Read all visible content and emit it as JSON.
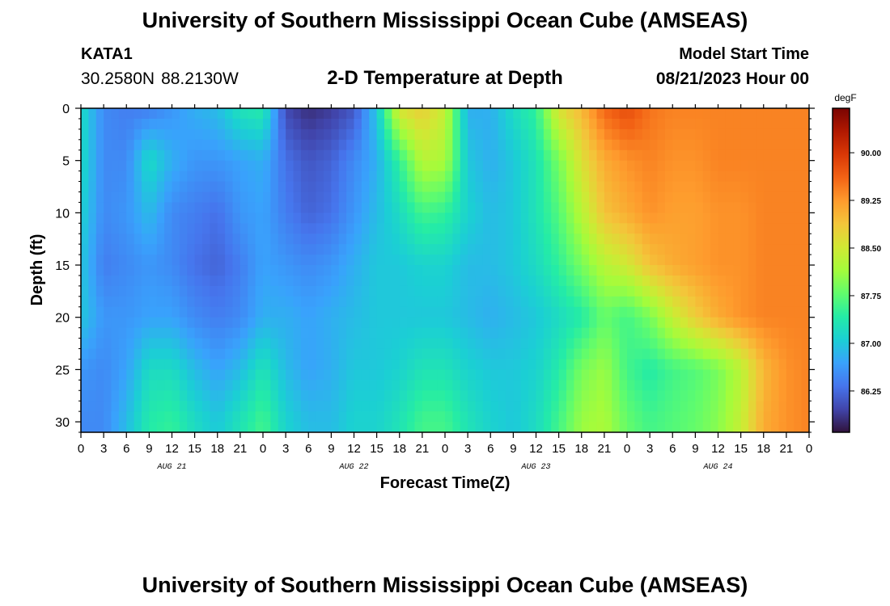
{
  "header": {
    "title": "University of Southern Mississippi Ocean Cube (AMSEAS)",
    "station": "KATA1",
    "latitude": "30.2580N",
    "longitude": "88.2130W",
    "subtitle": "2-D Temperature at Depth",
    "model_start_label": "Model Start Time",
    "model_start_value": "08/21/2023 Hour 00"
  },
  "footer": {
    "title": "University of Southern Mississippi Ocean Cube (AMSEAS)"
  },
  "chart_data": {
    "type": "heatmap",
    "title": "2-D Temperature at Depth",
    "xlabel": "Forecast Time(Z)",
    "ylabel": "Depth (ft)",
    "colorbar_unit": "degF",
    "x_ticks": [
      "0",
      "3",
      "6",
      "9",
      "12",
      "15",
      "18",
      "21",
      "0",
      "3",
      "6",
      "9",
      "12",
      "15",
      "18",
      "21",
      "0",
      "3",
      "6",
      "9",
      "12",
      "15",
      "18",
      "21",
      "0",
      "3",
      "6",
      "9",
      "12",
      "15",
      "18",
      "21",
      "0"
    ],
    "x_hours": [
      0,
      3,
      6,
      9,
      12,
      15,
      18,
      21,
      24,
      27,
      30,
      33,
      36,
      39,
      42,
      45,
      48,
      51,
      54,
      57,
      60,
      63,
      66,
      69,
      72,
      75,
      78,
      81,
      84,
      87,
      90,
      93,
      96
    ],
    "date_labels": [
      {
        "label": "AUG 21",
        "hour": 12
      },
      {
        "label": "AUG 22",
        "hour": 36
      },
      {
        "label": "AUG 23",
        "hour": 60
      },
      {
        "label": "AUG 24",
        "hour": 84
      }
    ],
    "y_ticks": [
      0,
      5,
      10,
      15,
      20,
      25,
      30
    ],
    "ylim": [
      31,
      0
    ],
    "xlim": [
      0,
      96
    ],
    "depths_ft": [
      0,
      5,
      10,
      15,
      20,
      25,
      30
    ],
    "times_h": [
      0,
      3,
      6,
      9,
      12,
      15,
      18,
      21,
      24,
      27,
      30,
      33,
      36,
      39,
      42,
      45,
      48,
      51,
      54,
      57,
      60,
      63,
      66,
      69,
      72,
      75,
      78,
      81,
      84,
      87,
      90,
      93,
      96
    ],
    "temperature": [
      [
        87.2,
        86.5,
        86.4,
        86.4,
        86.6,
        86.8,
        86.9,
        87.3,
        87.4,
        86.0,
        85.8,
        85.9,
        86.1,
        87.0,
        88.6,
        88.8,
        88.4,
        86.8,
        86.8,
        87.2,
        87.5,
        88.6,
        89.0,
        89.6,
        89.8,
        89.5,
        89.4,
        89.4,
        89.4,
        89.4,
        89.4,
        89.4,
        89.4
      ],
      [
        87.2,
        86.5,
        86.5,
        87.2,
        86.8,
        86.6,
        86.6,
        86.7,
        86.8,
        86.3,
        86.1,
        86.2,
        86.5,
        86.8,
        87.5,
        88.3,
        88.2,
        87.0,
        86.8,
        87.0,
        87.3,
        87.9,
        88.6,
        89.1,
        89.3,
        89.4,
        89.3,
        89.3,
        89.4,
        89.4,
        89.4,
        89.4,
        89.4
      ],
      [
        87.1,
        86.5,
        86.6,
        86.9,
        86.5,
        86.4,
        86.3,
        86.6,
        86.7,
        86.4,
        86.2,
        86.3,
        86.6,
        86.9,
        87.2,
        87.6,
        87.5,
        87.1,
        86.9,
        87.0,
        87.3,
        87.7,
        88.3,
        88.9,
        89.1,
        89.3,
        89.2,
        89.2,
        89.3,
        89.3,
        89.4,
        89.4,
        89.4
      ],
      [
        87.0,
        86.4,
        86.5,
        86.6,
        86.5,
        86.3,
        86.2,
        86.4,
        86.7,
        86.6,
        86.5,
        86.6,
        86.8,
        87.0,
        87.0,
        87.1,
        87.1,
        86.9,
        86.9,
        87.0,
        87.2,
        87.5,
        87.9,
        88.3,
        88.5,
        88.9,
        89.1,
        89.2,
        89.3,
        89.3,
        89.4,
        89.4,
        89.4
      ],
      [
        87.0,
        86.6,
        86.6,
        86.7,
        86.7,
        86.5,
        86.4,
        86.5,
        86.8,
        86.8,
        86.7,
        86.8,
        86.9,
        87.0,
        87.0,
        87.0,
        87.0,
        86.9,
        86.8,
        86.9,
        87.0,
        87.2,
        87.4,
        87.8,
        87.6,
        87.9,
        88.4,
        88.8,
        89.1,
        89.3,
        89.4,
        89.4,
        89.4
      ],
      [
        86.6,
        86.5,
        86.7,
        87.2,
        87.2,
        86.9,
        86.7,
        86.9,
        87.3,
        86.9,
        86.7,
        86.8,
        87.0,
        87.0,
        87.1,
        87.3,
        87.3,
        87.1,
        87.0,
        87.0,
        87.1,
        87.4,
        87.9,
        88.1,
        87.6,
        87.4,
        87.6,
        87.7,
        87.9,
        88.3,
        89.0,
        89.3,
        89.4
      ],
      [
        86.5,
        86.5,
        86.9,
        87.4,
        87.5,
        87.2,
        87.0,
        87.3,
        87.6,
        87.1,
        86.9,
        86.9,
        87.1,
        87.1,
        87.3,
        87.6,
        87.6,
        87.3,
        87.1,
        87.0,
        87.2,
        87.6,
        88.1,
        88.2,
        87.8,
        87.6,
        87.7,
        87.8,
        88.0,
        88.4,
        89.1,
        89.3,
        89.4
      ]
    ],
    "colorbar": {
      "min": 85.6,
      "max": 90.7,
      "ticks": [
        "90.00",
        "89.25",
        "88.50",
        "87.75",
        "87.00",
        "86.25"
      ],
      "tick_values": [
        90.0,
        89.25,
        88.5,
        87.75,
        87.0,
        86.25
      ]
    },
    "colormap": [
      "#30123b",
      "#4145ab",
      "#4675ed",
      "#39a2fc",
      "#1bcfd4",
      "#24eca6",
      "#61fc6c",
      "#a4fc3b",
      "#d1e834",
      "#f3c63a",
      "#fe9b2d",
      "#f36315",
      "#d93806",
      "#b11901",
      "#7a0402"
    ]
  }
}
